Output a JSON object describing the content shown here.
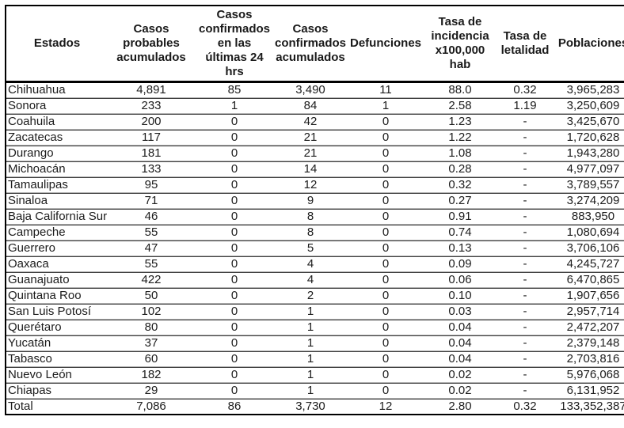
{
  "table": {
    "columns": [
      {
        "key": "estados",
        "label": "Estados"
      },
      {
        "key": "casos-probables-acumulados",
        "label": "Casos probables acumulados"
      },
      {
        "key": "casos-confirmados-24hrs",
        "label": "Casos confirmados en las últimas 24 hrs"
      },
      {
        "key": "casos-confirmados-acumulados",
        "label": "Casos confirmados acumulados"
      },
      {
        "key": "defunciones",
        "label": "Defunciones"
      },
      {
        "key": "tasa-incidencia",
        "label": "Tasa de incidencia x100,000 hab"
      },
      {
        "key": "tasa-letalidad",
        "label": "Tasa de letalidad"
      },
      {
        "key": "poblaciones",
        "label": "Poblaciones"
      }
    ],
    "rows": [
      [
        "Chihuahua",
        "4,891",
        "85",
        "3,490",
        "11",
        "88.0",
        "0.32",
        "3,965,283"
      ],
      [
        "Sonora",
        "233",
        "1",
        "84",
        "1",
        "2.58",
        "1.19",
        "3,250,609"
      ],
      [
        "Coahuila",
        "200",
        "0",
        "42",
        "0",
        "1.23",
        "-",
        "3,425,670"
      ],
      [
        "Zacatecas",
        "117",
        "0",
        "21",
        "0",
        "1.22",
        "-",
        "1,720,628"
      ],
      [
        "Durango",
        "181",
        "0",
        "21",
        "0",
        "1.08",
        "-",
        "1,943,280"
      ],
      [
        "Michoacán",
        "133",
        "0",
        "14",
        "0",
        "0.28",
        "-",
        "4,977,097"
      ],
      [
        "Tamaulipas",
        "95",
        "0",
        "12",
        "0",
        "0.32",
        "-",
        "3,789,557"
      ],
      [
        "Sinaloa",
        "71",
        "0",
        "9",
        "0",
        "0.27",
        "-",
        "3,274,209"
      ],
      [
        "Baja California Sur",
        "46",
        "0",
        "8",
        "0",
        "0.91",
        "-",
        "883,950"
      ],
      [
        "Campeche",
        "55",
        "0",
        "8",
        "0",
        "0.74",
        "-",
        "1,080,694"
      ],
      [
        "Guerrero",
        "47",
        "0",
        "5",
        "0",
        "0.13",
        "-",
        "3,706,106"
      ],
      [
        "Oaxaca",
        "55",
        "0",
        "4",
        "0",
        "0.09",
        "-",
        "4,245,727"
      ],
      [
        "Guanajuato",
        "422",
        "0",
        "4",
        "0",
        "0.06",
        "-",
        "6,470,865"
      ],
      [
        "Quintana Roo",
        "50",
        "0",
        "2",
        "0",
        "0.10",
        "-",
        "1,907,656"
      ],
      [
        "San Luis Potosí",
        "102",
        "0",
        "1",
        "0",
        "0.03",
        "-",
        "2,957,714"
      ],
      [
        "Querétaro",
        "80",
        "0",
        "1",
        "0",
        "0.04",
        "-",
        "2,472,207"
      ],
      [
        "Yucatán",
        "37",
        "0",
        "1",
        "0",
        "0.04",
        "-",
        "2,379,148"
      ],
      [
        "Tabasco",
        "60",
        "0",
        "1",
        "0",
        "0.04",
        "-",
        "2,703,816"
      ],
      [
        "Nuevo León",
        "182",
        "0",
        "1",
        "0",
        "0.02",
        "-",
        "5,976,068"
      ],
      [
        "Chiapas",
        "29",
        "0",
        "1",
        "0",
        "0.02",
        "-",
        "6,131,952"
      ],
      [
        "Total",
        "7,086",
        "86",
        "3,730",
        "12",
        "2.80",
        "0.32",
        "133,352,387"
      ]
    ],
    "colors": {
      "outer_border": "#000000",
      "row_separator_dark": "#3f3f3f",
      "row_separator_light": "#b0b0b0",
      "text": "#1c1c1c",
      "background": "#ffffff"
    }
  }
}
